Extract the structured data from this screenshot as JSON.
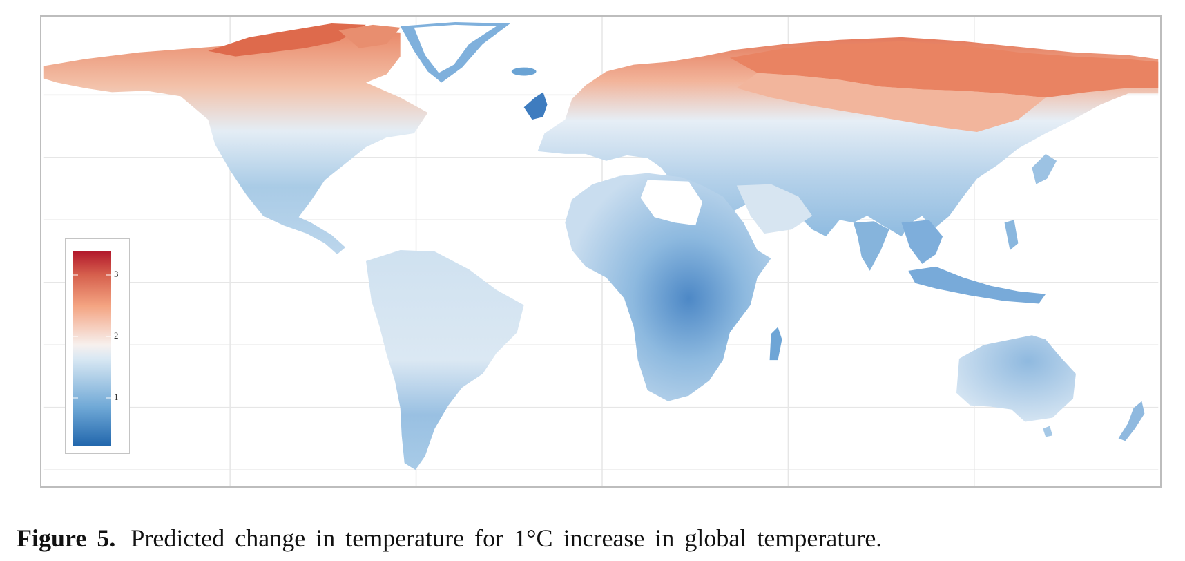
{
  "figure": {
    "label": "Figure 5.",
    "caption": "Predicted change in temperature for 1°C increase in global temperature."
  },
  "legend": {
    "ticks": [
      "1",
      "2",
      "3"
    ],
    "range": [
      0.5,
      3.5
    ],
    "colors": [
      "#2166ac",
      "#6fa8d6",
      "#d9e8f3",
      "#f7f0ee",
      "#f4a482",
      "#d6604d",
      "#b2182b"
    ]
  },
  "map": {
    "projection": "equirectangular",
    "grid": true,
    "colors": {
      "very_cool": "#3d7dbf",
      "cool": "#8fbbe0",
      "mild": "#c6dcee",
      "neutral": "#e9eff5",
      "warm": "#f3c3ae",
      "hot": "#e47a5c",
      "very_hot": "#d9523e"
    }
  }
}
